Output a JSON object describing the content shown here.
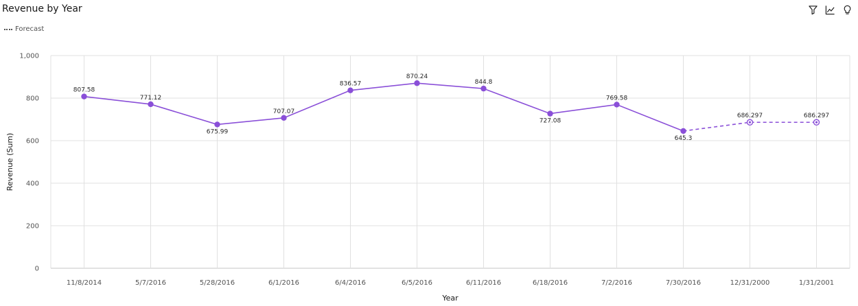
{
  "header": {
    "title": "Revenue by Year",
    "legend_label": "Forecast",
    "toolbar": [
      {
        "icon": "filter-icon"
      },
      {
        "icon": "trend-icon"
      },
      {
        "icon": "lightbulb-icon"
      }
    ]
  },
  "colors": {
    "series": "#8a4fd8",
    "grid": "#e0e0e0",
    "axis": "#c6c6c6"
  },
  "chart_data": {
    "type": "line",
    "title": "Revenue by Year",
    "xlabel": "Year",
    "ylabel": "Revenue (Sum)",
    "ylim": [
      0,
      1000
    ],
    "yticks": [
      "0",
      "200",
      "400",
      "600",
      "800",
      "1,000"
    ],
    "ytick_values": [
      0,
      200,
      400,
      600,
      800,
      1000
    ],
    "grid": true,
    "categories": [
      "11/8/2014",
      "5/7/2016",
      "5/28/2016",
      "6/1/2016",
      "6/4/2016",
      "6/5/2016",
      "6/11/2016",
      "6/18/2016",
      "7/2/2016",
      "7/30/2016",
      "12/31/2000",
      "1/31/2001"
    ],
    "series": [
      {
        "values": [
          807.58,
          771.12,
          675.99,
          707.07,
          836.57,
          870.24,
          844.8,
          727.08,
          769.58,
          645.3,
          null,
          null
        ],
        "labels": [
          "807.58",
          "771.12",
          "675.99",
          "707.07",
          "836.57",
          "870.24",
          "844.8",
          "727.08",
          "769.58",
          "645.3",
          "",
          ""
        ],
        "label_side": [
          "above",
          "above",
          "below",
          "above",
          "above",
          "above",
          "above",
          "below",
          "above",
          "below",
          "",
          ""
        ]
      },
      {
        "name": "Forecast",
        "values": [
          null,
          null,
          null,
          null,
          null,
          null,
          null,
          null,
          null,
          645.3,
          686.297,
          686.297
        ],
        "labels": [
          "",
          "",
          "",
          "",
          "",
          "",
          "",
          "",
          "",
          "",
          "686.297",
          "686.297"
        ],
        "label_side": [
          "",
          "",
          "",
          "",
          "",
          "",
          "",
          "",
          "",
          "",
          "above",
          "above"
        ]
      }
    ]
  }
}
